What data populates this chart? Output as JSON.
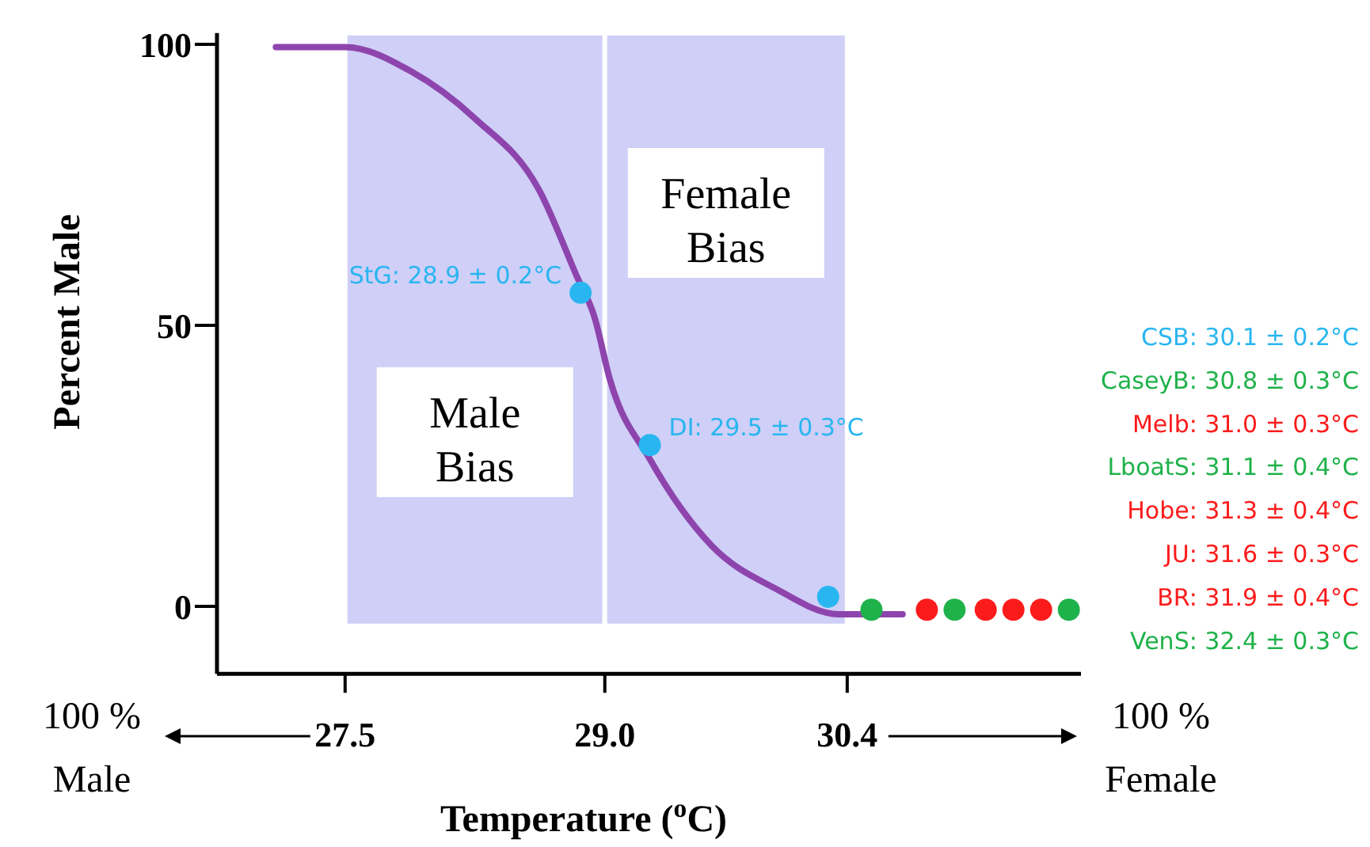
{
  "chart_data": {
    "type": "line",
    "xlabel": "Temperature ($^{o}$C)",
    "ylabel": "Percent Male",
    "xlim": [
      26.76,
      31.75
    ],
    "ylim": [
      -12,
      102
    ],
    "xticks": [
      27.5,
      {
        "value": 29,
        "label": "29.0"
      },
      30.4
    ],
    "yticks": [
      0,
      50,
      100
    ],
    "series": [
      {
        "color": "#8e44ad",
        "x": [
          27.1,
          27.5,
          27.88,
          28.25,
          28.62,
          28.84,
          28.94,
          29.03,
          29.26,
          29.62,
          29.99,
          30.35,
          30.72
        ],
        "values": [
          99.5,
          99.5,
          95.2,
          86.8,
          74.1,
          58.6,
          51.5,
          40.3,
          26.2,
          10.7,
          3.1,
          -1.4,
          -1.4
        ]
      },
      {
        "type": "scatter",
        "x": [
          28.86,
          29.26,
          30.29,
          30.54,
          30.86,
          31.02,
          31.2,
          31.36,
          31.52,
          31.68
        ],
        "values": [
          55.8,
          28.7,
          1.7,
          -0.6,
          -0.6,
          -0.6,
          -0.6,
          -0.6,
          -0.6,
          -0.6
        ],
        "colors": [
          "#29b6f0",
          "#29b6f0",
          "#29b6f0",
          "#1fb24a",
          "#fc1b1b",
          "#1fb24a",
          "#fc1b1b",
          "#fc1b1b",
          "#fc1b1b",
          "#1fb24a"
        ]
      }
    ],
    "bands": [
      {
        "axis": "x",
        "from": 27.5,
        "to": 29.0,
        "label": "Male Bias",
        "color": "#cfcff7"
      },
      {
        "axis": "x",
        "from": 29.0,
        "to": 30.4,
        "label": "Female Bias",
        "color": "#cfcff7"
      }
    ],
    "annotations": [
      "100 %\nMale",
      "100 %\nFemale",
      {
        "text": "StG: 28.9 ± 0.2°C",
        "x": 28.86,
        "y": 55.8
      },
      {
        "text": "DI: 29.5 ± 0.3°C",
        "x": 29.26,
        "y": 28.7
      },
      "CSB: 30.1 ± 0.2°C",
      "CaseyB: 30.8 ± 0.3°C",
      "Melb: 31.0 ± 0.3°C",
      "LboatS: 31.1 ± 0.4°C",
      "Hobe: 31.3 ± 0.4°C",
      "JU: 31.6 ± 0.3°C",
      "BR: 31.9 ± 0.4°C",
      "VenS: 32.4 ± 0.3°C"
    ]
  }
}
